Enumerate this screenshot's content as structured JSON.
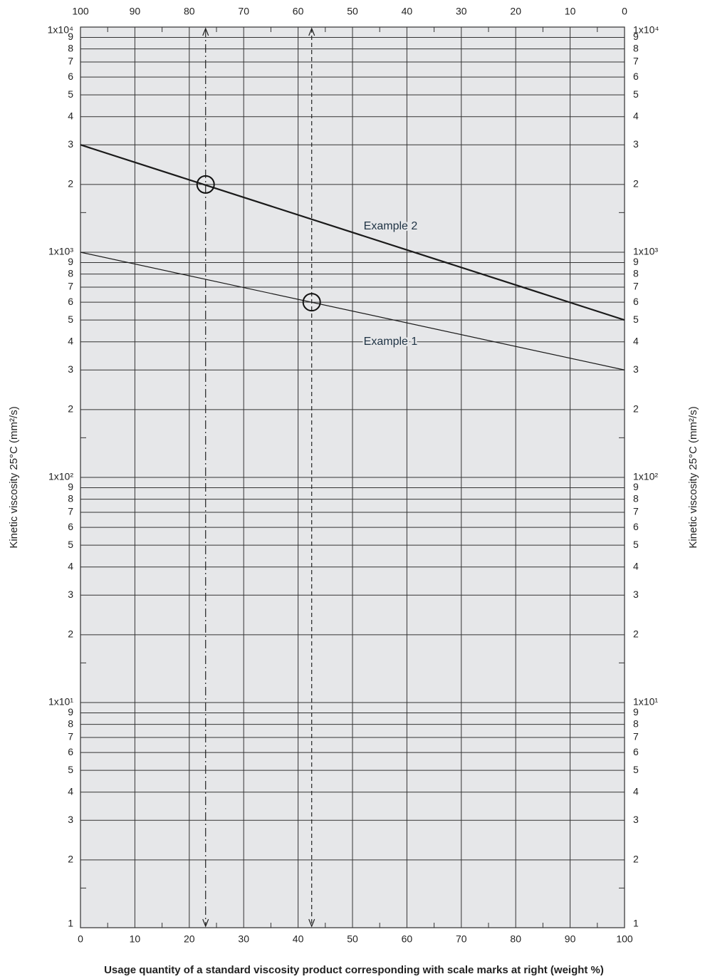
{
  "chart_data": {
    "type": "line",
    "x_label": "Usage quantity of a standard viscosity product corresponding with scale marks at right (weight %)",
    "y_label": "Kinetic viscosity 25°C (mm²/s)",
    "log_y": true,
    "grid": true,
    "background": "#e6e7e9",
    "xlim": [
      0,
      100
    ],
    "xticks": [
      0,
      10,
      20,
      30,
      40,
      50,
      60,
      70,
      80,
      90,
      100
    ],
    "xminor": [
      5,
      15,
      25,
      35,
      45,
      55,
      65,
      75,
      85,
      95
    ],
    "x2lim": [
      100,
      0
    ],
    "x2ticks": [
      100,
      90,
      80,
      70,
      60,
      50,
      40,
      30,
      20,
      10,
      0
    ],
    "ylim": [
      1,
      10000
    ],
    "yticks": [
      1,
      2,
      3,
      4,
      5,
      6,
      7,
      8,
      9,
      {
        "value": 10,
        "label": "1x10¹"
      },
      {
        "value": 20,
        "label": "2"
      },
      {
        "value": 30,
        "label": "3"
      },
      {
        "value": 40,
        "label": "4"
      },
      {
        "value": 50,
        "label": "5"
      },
      {
        "value": 60,
        "label": "6"
      },
      {
        "value": 70,
        "label": "7"
      },
      {
        "value": 80,
        "label": "8"
      },
      {
        "value": 90,
        "label": "9"
      },
      {
        "value": 100,
        "label": "1x10²"
      },
      {
        "value": 200,
        "label": "2"
      },
      {
        "value": 300,
        "label": "3"
      },
      {
        "value": 400,
        "label": "4"
      },
      {
        "value": 500,
        "label": "5"
      },
      {
        "value": 600,
        "label": "6"
      },
      {
        "value": 700,
        "label": "7"
      },
      {
        "value": 800,
        "label": "8"
      },
      {
        "value": 900,
        "label": "9"
      },
      {
        "value": 1000,
        "label": "1x10³"
      },
      {
        "value": 2000,
        "label": "2"
      },
      {
        "value": 3000,
        "label": "3"
      },
      {
        "value": 4000,
        "label": "4"
      },
      {
        "value": 5000,
        "label": "5"
      },
      {
        "value": 6000,
        "label": "6"
      },
      {
        "value": 7000,
        "label": "7"
      },
      {
        "value": 8000,
        "label": "8"
      },
      {
        "value": 9000,
        "label": "9"
      },
      {
        "value": 10000,
        "label": "1x10⁴"
      }
    ],
    "yminor": [
      1.5,
      15,
      150,
      1500
    ],
    "series": [
      {
        "name": "Example 2",
        "color": "#1a1a1a",
        "width": 2.2,
        "x": [
          0,
          100
        ],
        "values": [
          3000,
          500
        ],
        "label_at": [
          57,
          1300
        ]
      },
      {
        "name": "Example 1",
        "color": "#1a1a1a",
        "width": 1.2,
        "x": [
          0,
          100
        ],
        "values": [
          1000,
          300
        ],
        "label_at": [
          57,
          400
        ]
      }
    ],
    "markers": [
      {
        "x": 23,
        "y": 2000,
        "dash": "12 4 2 4"
      },
      {
        "x": 42.5,
        "y": 600,
        "dash": "6 4"
      }
    ]
  }
}
